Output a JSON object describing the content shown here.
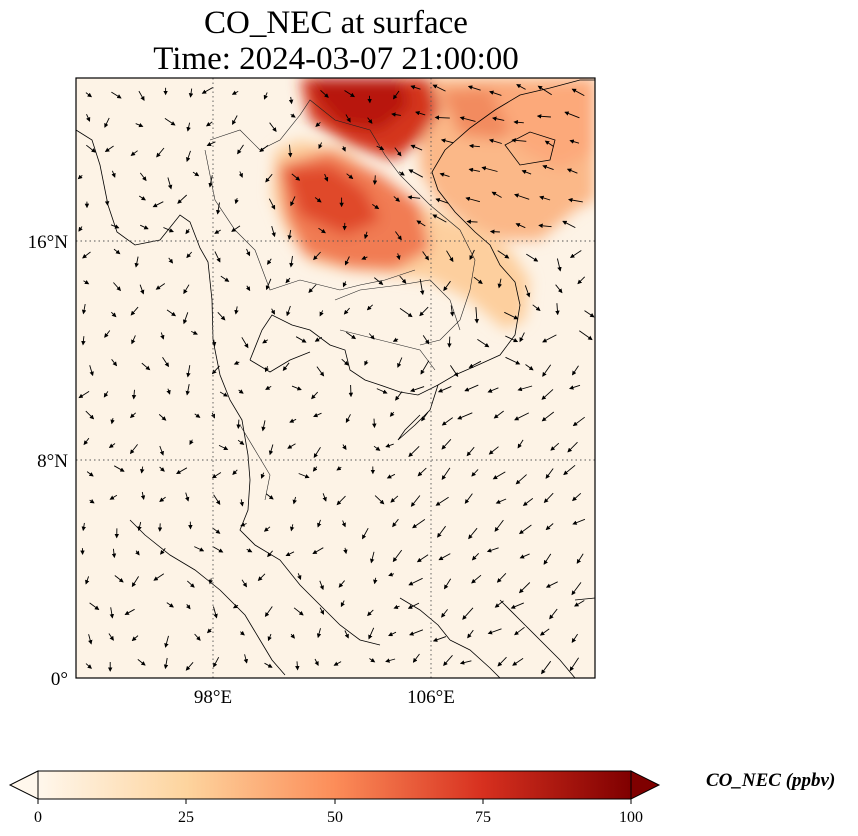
{
  "title": {
    "line1": "CO_NEC at surface",
    "line2": "Time: 2024-03-07 21:00:00"
  },
  "map": {
    "lon_range": [
      92,
      111
    ],
    "lat_range": [
      0,
      22
    ],
    "lat_ticks": [
      {
        "value": 16,
        "label": "16°N"
      },
      {
        "value": 8,
        "label": "8°N"
      },
      {
        "value": 0,
        "label": "0°"
      }
    ],
    "lon_ticks": [
      {
        "value": 98,
        "label": "98°E"
      },
      {
        "value": 106,
        "label": "106°E"
      }
    ],
    "gridlines": "dotted",
    "field": "CO_NEC",
    "overlay": "wind vectors"
  },
  "colorbar": {
    "label": "CO_NEC (ppbv)",
    "min": 0,
    "max": 100,
    "ticks": [
      "0",
      "25",
      "50",
      "75",
      "100"
    ],
    "extend": "both",
    "colormap": "OrRd",
    "colors": [
      "#fff7ec",
      "#fdd49e",
      "#fc8d59",
      "#d7301f",
      "#7f0000"
    ]
  }
}
